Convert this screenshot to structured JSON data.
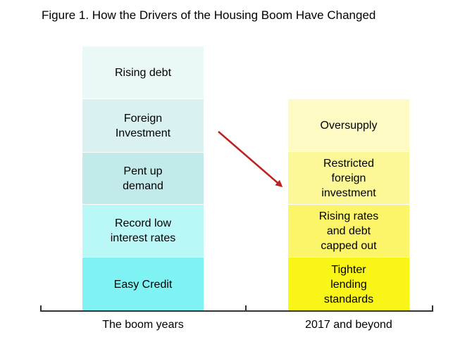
{
  "title": "Figure 1. How the Drivers of the Housing Boom Have Changed",
  "left_column": {
    "label": "The boom years",
    "blocks": [
      {
        "text": "Rising debt",
        "color": "#eaf8f8"
      },
      {
        "text": "Foreign\nInvestment",
        "color": "#d9f1f1"
      },
      {
        "text": "Pent up\ndemand",
        "color": "#c3eaea"
      },
      {
        "text": "Record low\ninterest rates",
        "color": "#baf8f8"
      },
      {
        "text": "Easy Credit",
        "color": "#7ff3f3"
      }
    ]
  },
  "right_column": {
    "label": "2017 and beyond",
    "blocks": [
      {
        "text": "Oversupply",
        "color": "#fdfbc3"
      },
      {
        "text": "Restricted\nforeign\ninvestment",
        "color": "#fcf897"
      },
      {
        "text": "Rising rates\nand debt\ncapped out",
        "color": "#fcf56a"
      },
      {
        "text": "Tighter\nlending\nstandards",
        "color": "#f9f516"
      }
    ]
  },
  "arrow_color": "#c0201f"
}
